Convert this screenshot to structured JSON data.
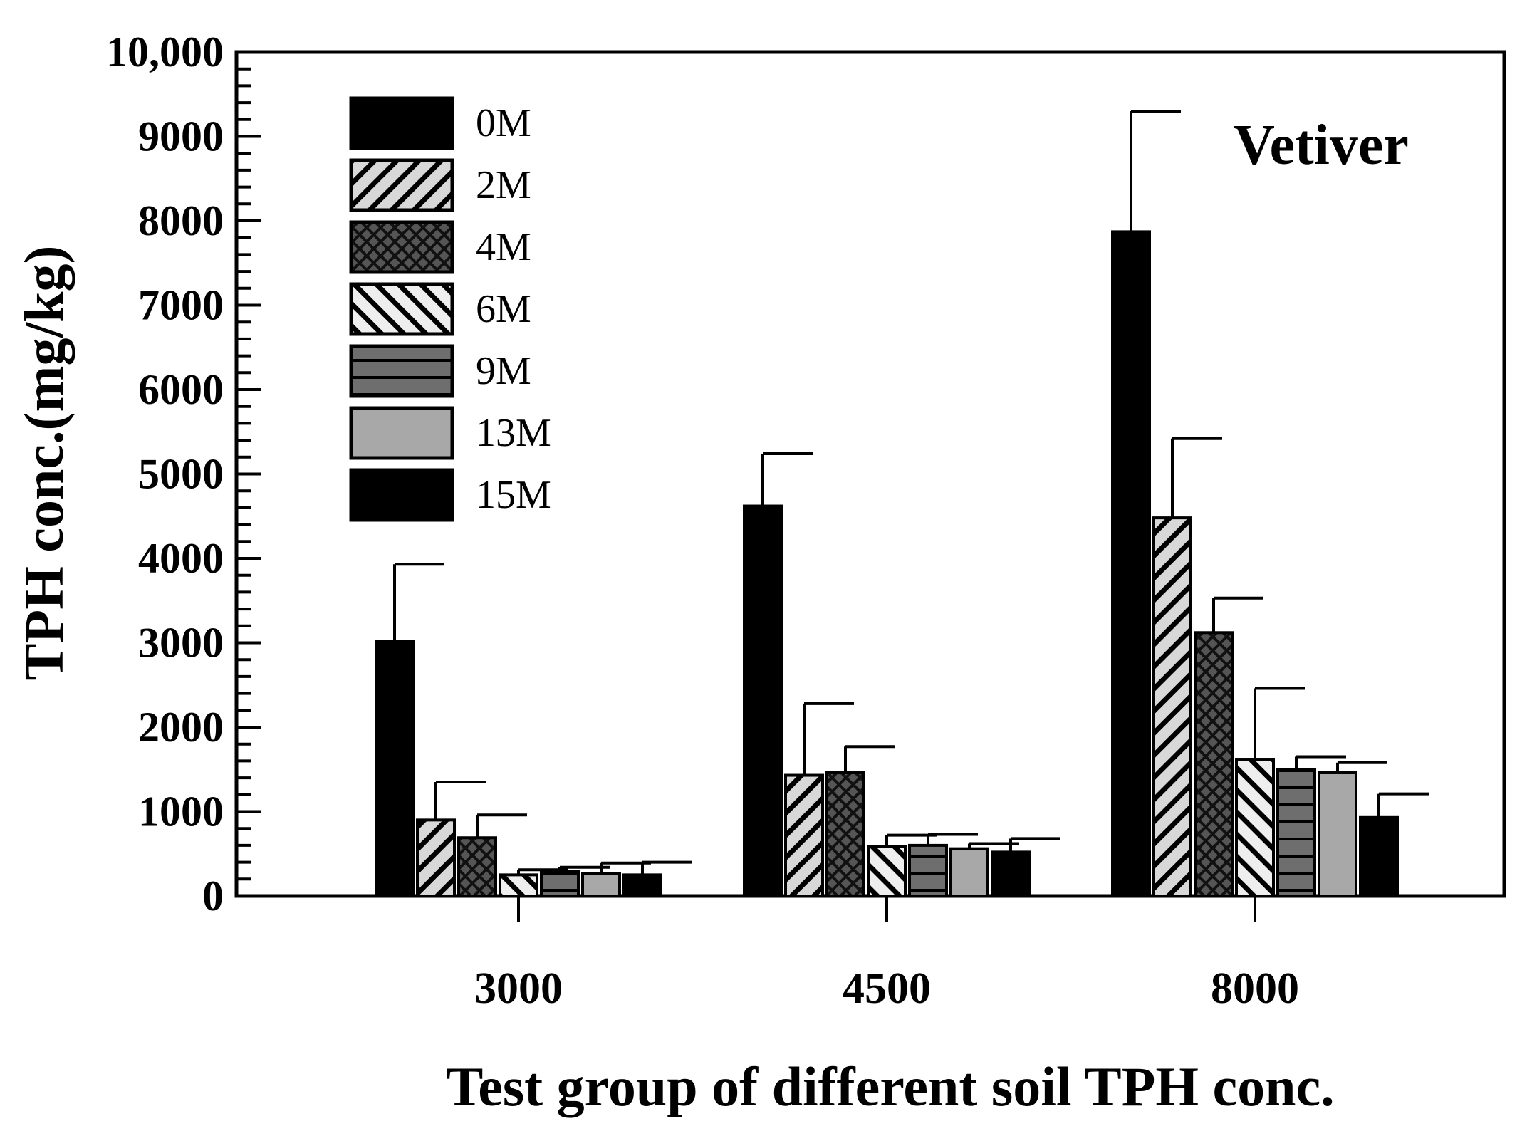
{
  "chart_data": {
    "type": "bar",
    "annotation": "Vetiver",
    "xlabel": "Test group of different soil TPH conc.",
    "ylabel": "TPH conc.(mg/kg)",
    "ylim": [
      0,
      10000
    ],
    "yticks": [
      0,
      1000,
      2000,
      3000,
      4000,
      5000,
      6000,
      7000,
      8000,
      9000,
      10000
    ],
    "ytick_labels": [
      "0",
      "1000",
      "2000",
      "3000",
      "4000",
      "5000",
      "6000",
      "7000",
      "8000",
      "9000",
      "10,000"
    ],
    "categories": [
      "3000",
      "4500",
      "8000"
    ],
    "legend_position": "top-left",
    "series": [
      {
        "name": "0M",
        "pattern": "solid-black",
        "values": [
          3020,
          4620,
          7870
        ],
        "errors": [
          910,
          620,
          1430
        ]
      },
      {
        "name": "2M",
        "pattern": "diag-up",
        "values": [
          900,
          1430,
          4480
        ],
        "errors": [
          450,
          850,
          940
        ]
      },
      {
        "name": "4M",
        "pattern": "crosshatch",
        "values": [
          690,
          1460,
          3120
        ],
        "errors": [
          270,
          310,
          410
        ]
      },
      {
        "name": "6M",
        "pattern": "diag-down",
        "values": [
          250,
          590,
          1620
        ],
        "errors": [
          60,
          130,
          840
        ]
      },
      {
        "name": "9M",
        "pattern": "horizontal",
        "values": [
          290,
          600,
          1500
        ],
        "errors": [
          50,
          130,
          150
        ]
      },
      {
        "name": "13M",
        "pattern": "solid-gray",
        "values": [
          270,
          560,
          1460
        ],
        "errors": [
          120,
          60,
          120
        ]
      },
      {
        "name": "15M",
        "pattern": "solid-black",
        "values": [
          250,
          520,
          930
        ],
        "errors": [
          150,
          160,
          280
        ]
      }
    ]
  }
}
